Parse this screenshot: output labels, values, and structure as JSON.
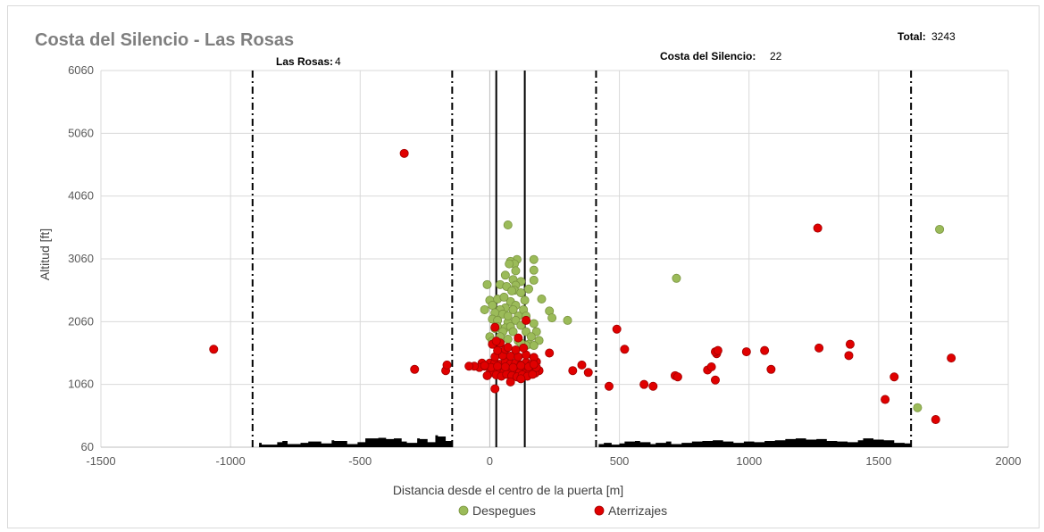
{
  "chart_data": {
    "type": "scatter",
    "title": "Costa del Silencio - Las Rosas",
    "xlabel": "Distancia desde el centro de la puerta [m]",
    "ylabel": "Altitud [ft]",
    "xlim": [
      -1500,
      2000
    ],
    "ylim": [
      60,
      6060
    ],
    "x_ticks": [
      -1500,
      -1000,
      -500,
      0,
      500,
      1000,
      1500,
      2000
    ],
    "y_ticks": [
      60,
      1060,
      2060,
      3060,
      4060,
      5060,
      6060
    ],
    "grid": true,
    "legend_position": "bottom",
    "annotations": {
      "total_label": "Total:",
      "total_value": "3243",
      "left_zone_label": "Las Rosas:",
      "left_zone_value": "4",
      "right_zone_label": "Costa del Silencio:",
      "right_zone_value": "22"
    },
    "gate_lines": [
      25,
      135
    ],
    "zone_boundaries": [
      -915,
      -145,
      410,
      1625
    ],
    "series": [
      {
        "name": "Despegues",
        "color": "#9bbb59",
        "x": [
          70,
          720,
          1735,
          1650,
          105,
          170,
          80,
          95,
          75,
          100,
          170,
          60,
          90,
          120,
          -10,
          170,
          40,
          65,
          100,
          95,
          150,
          120,
          200,
          0,
          30,
          80,
          135,
          10,
          100,
          60,
          40,
          90,
          130,
          230,
          -20,
          20,
          50,
          110,
          140,
          240,
          300,
          10,
          30,
          70,
          100,
          120,
          170,
          30,
          60,
          80,
          50,
          90,
          140,
          180,
          0,
          40,
          70,
          160,
          10,
          110,
          150,
          190,
          140,
          170,
          120,
          70,
          20,
          55,
          85
        ],
        "y": [
          3600,
          2750,
          3530,
          690,
          3050,
          3050,
          3020,
          2980,
          2980,
          2870,
          2880,
          2800,
          2730,
          2700,
          2650,
          2720,
          2650,
          2620,
          2640,
          2560,
          2580,
          2520,
          2420,
          2400,
          2420,
          2380,
          2400,
          2320,
          2320,
          2280,
          2250,
          2250,
          2250,
          2230,
          2250,
          2200,
          2180,
          2150,
          2150,
          2120,
          2080,
          2100,
          2080,
          2050,
          2080,
          2000,
          2030,
          1980,
          1960,
          1980,
          1900,
          1900,
          1900,
          1900,
          1820,
          1820,
          1780,
          1820,
          1750,
          1750,
          1700,
          1760,
          1680,
          1680,
          1720,
          2150,
          1950,
          2450,
          2550
        ]
      },
      {
        "name": "Aterrizajes",
        "color": "#e00000",
        "x": [
          -330,
          1265,
          -1065,
          -290,
          -170,
          -165,
          140,
          20,
          490,
          520,
          460,
          320,
          355,
          380,
          595,
          630,
          715,
          725,
          840,
          855,
          870,
          875,
          870,
          880,
          990,
          1060,
          1085,
          1270,
          1390,
          1385,
          1525,
          1560,
          1720,
          1780,
          0,
          20,
          40,
          60,
          80,
          100,
          120,
          140,
          160,
          180,
          10,
          30,
          50,
          70,
          90,
          110,
          130,
          150,
          170,
          190,
          0,
          15,
          35,
          55,
          75,
          95,
          115,
          135,
          155,
          175,
          -10,
          25,
          45,
          65,
          85,
          105,
          125,
          145,
          165,
          -20,
          5,
          30,
          60,
          90,
          120,
          150,
          180,
          -30,
          -40,
          -60,
          -80,
          -20,
          230,
          20,
          50,
          80,
          110,
          140,
          170,
          30,
          60,
          100,
          130,
          10,
          40,
          70,
          170,
          20,
          80,
          120,
          25,
          110
        ],
        "y": [
          4740,
          3550,
          1620,
          1300,
          1280,
          1370,
          2080,
          1970,
          1940,
          1620,
          1030,
          1280,
          1370,
          1250,
          1060,
          1030,
          1200,
          1180,
          1290,
          1340,
          1130,
          1550,
          1580,
          1600,
          1580,
          1600,
          1300,
          1640,
          1700,
          1520,
          820,
          1180,
          500,
          1480,
          1400,
          1410,
          1380,
          1420,
          1390,
          1400,
          1370,
          1410,
          1380,
          1420,
          1300,
          1290,
          1310,
          1280,
          1320,
          1300,
          1270,
          1290,
          1310,
          1280,
          1240,
          1250,
          1230,
          1260,
          1240,
          1220,
          1250,
          1230,
          1260,
          1240,
          1200,
          1210,
          1190,
          1220,
          1200,
          1180,
          1210,
          1190,
          1220,
          1350,
          1330,
          1350,
          1340,
          1330,
          1360,
          1340,
          1330,
          1400,
          1330,
          1350,
          1350,
          1360,
          1560,
          1500,
          1520,
          1510,
          1500,
          1530,
          1490,
          1600,
          1620,
          1610,
          1640,
          1700,
          1720,
          1650,
          1380,
          990,
          1100,
          1150,
          1750,
          1800
        ]
      }
    ],
    "terrain_profile": {
      "x": [
        -915,
        -890,
        -880,
        -820,
        -800,
        -780,
        -730,
        -700,
        -650,
        -610,
        -600,
        -550,
        -510,
        -480,
        -430,
        -400,
        -370,
        -340,
        -320,
        -280,
        -270,
        -240,
        -210,
        -200,
        -170,
        -145
      ],
      "y": [
        60,
        130,
        100,
        140,
        160,
        110,
        130,
        150,
        120,
        170,
        160,
        110,
        140,
        200,
        210,
        190,
        200,
        150,
        130,
        200,
        190,
        140,
        250,
        230,
        160,
        60
      ]
    },
    "terrain_profile_right": {
      "x": [
        410,
        420,
        440,
        470,
        500,
        520,
        560,
        580,
        620,
        640,
        680,
        700,
        740,
        780,
        820,
        860,
        900,
        940,
        980,
        1020,
        1060,
        1100,
        1140,
        1180,
        1220,
        1260,
        1300,
        1340,
        1380,
        1420,
        1440,
        1480,
        1520,
        1560,
        1600,
        1625
      ],
      "y": [
        60,
        110,
        130,
        100,
        120,
        150,
        160,
        140,
        110,
        130,
        150,
        110,
        130,
        150,
        160,
        170,
        150,
        130,
        150,
        140,
        160,
        170,
        190,
        200,
        180,
        190,
        160,
        150,
        140,
        170,
        200,
        180,
        170,
        130,
        120,
        60
      ]
    },
    "legend": {
      "entries": [
        "Despegues",
        "Aterrizajes"
      ]
    }
  }
}
